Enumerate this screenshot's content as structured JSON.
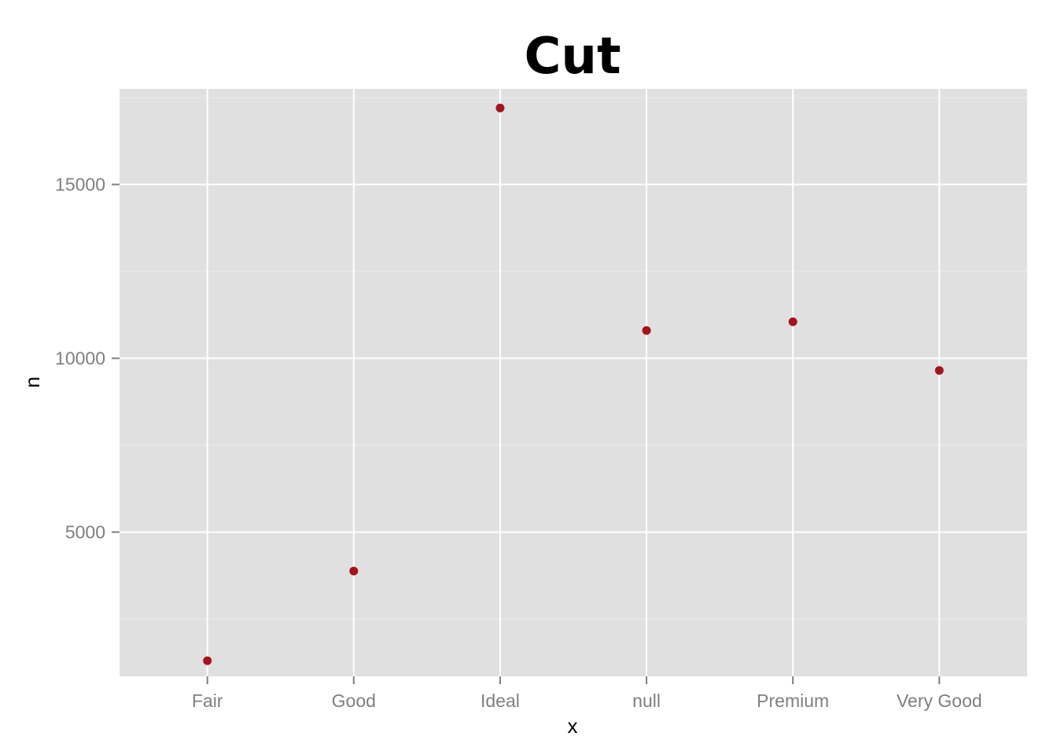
{
  "chart_data": {
    "type": "scatter",
    "title": "Cut",
    "xlabel": "x",
    "ylabel": "n",
    "categories": [
      "Fair",
      "Good",
      "Ideal",
      "null",
      "Premium",
      "Very Good"
    ],
    "values": [
      1300,
      3880,
      17200,
      10800,
      11050,
      9650
    ],
    "ylim": [
      850,
      17750
    ],
    "yticks": [
      5000,
      10000,
      15000
    ],
    "ytick_labels": [
      "5000",
      "10000",
      "15000"
    ],
    "grid": true,
    "legend": "none",
    "colors": {
      "panel_background": "#e0e0e0",
      "grid_major": "#ffffff",
      "grid_minor": "#ececec",
      "point": "#a3141e",
      "tick_text": "#7f7f7f",
      "tick_mark": "#7f7f7f"
    }
  }
}
